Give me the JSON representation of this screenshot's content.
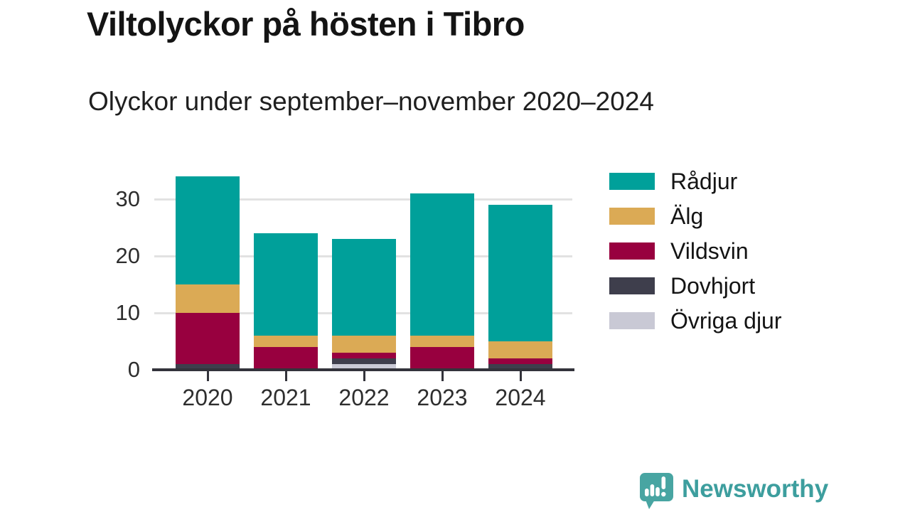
{
  "header": {
    "title": "Viltolyckor på hösten i Tibro",
    "subtitle": "Olyckor under september–november 2020–2024"
  },
  "chart_data": {
    "type": "bar",
    "stacked": true,
    "title": "Viltolyckor på hösten i Tibro",
    "subtitle": "Olyckor under september–november 2020–2024",
    "categories": [
      "2020",
      "2021",
      "2022",
      "2023",
      "2024"
    ],
    "series": [
      {
        "name": "Rådjur",
        "color": "#00a09a",
        "values": [
          19,
          18,
          17,
          25,
          24
        ]
      },
      {
        "name": "Älg",
        "color": "#dbaa55",
        "values": [
          5,
          2,
          3,
          2,
          3
        ]
      },
      {
        "name": "Vildsvin",
        "color": "#98003f",
        "values": [
          9,
          4,
          1,
          4,
          1
        ]
      },
      {
        "name": "Dovhjort",
        "color": "#3e3e4c",
        "values": [
          1,
          0,
          1,
          0,
          1
        ]
      },
      {
        "name": "Övriga djur",
        "color": "#c9c9d5",
        "values": [
          0,
          0,
          1,
          0,
          0
        ]
      }
    ],
    "totals": [
      34,
      24,
      23,
      31,
      29
    ],
    "xlabel": "",
    "ylabel": "",
    "ylim": [
      0,
      35
    ],
    "yticks": [
      0,
      10,
      20,
      30
    ],
    "grid": true,
    "legend_position": "right",
    "stack_order_bottom_to_top": [
      "Övriga djur",
      "Dovhjort",
      "Vildsvin",
      "Älg",
      "Rådjur"
    ]
  },
  "colors": {
    "axis": "#33333b",
    "gridline": "#e2e2e2",
    "tick_label": "#2e2e2e",
    "title_text": "#141414",
    "brand_teal": "#3d9e9e",
    "logo_bubble": "#48a5a2"
  },
  "footer": {
    "brand": "Newsworthy"
  }
}
